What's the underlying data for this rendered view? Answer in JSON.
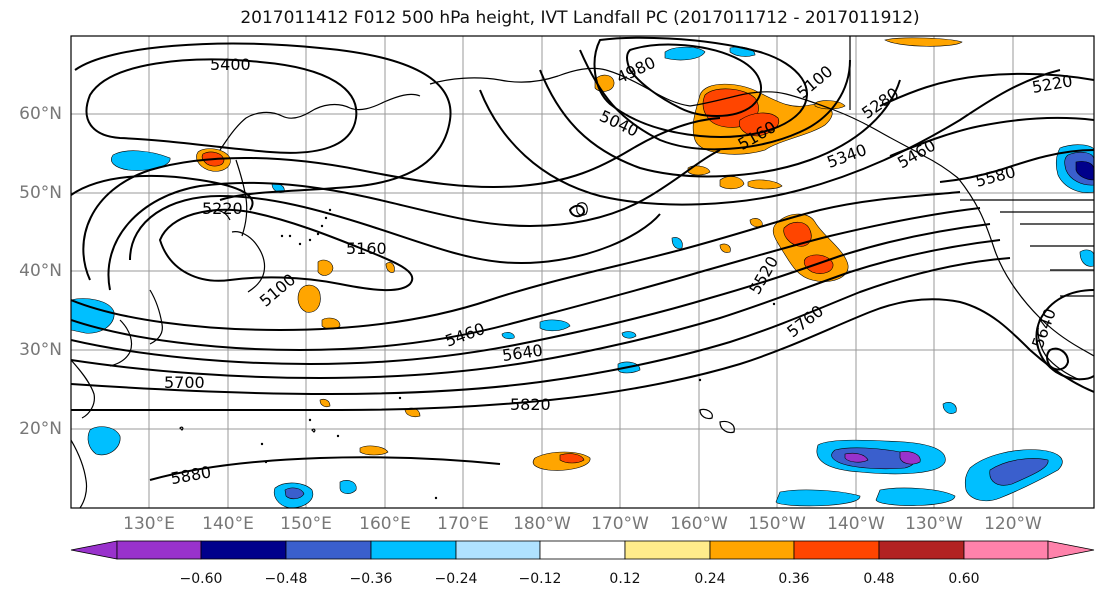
{
  "title": "2017011412 F012 500 hPa height, IVT Landfall PC (2017011712 - 2017011912)",
  "lat_labels": [
    "60°N",
    "50°N",
    "40°N",
    "30°N",
    "20°N"
  ],
  "lon_labels": [
    "130°E",
    "140°E",
    "150°E",
    "160°E",
    "170°E",
    "180°W",
    "170°W",
    "160°W",
    "150°W",
    "140°W",
    "130°W",
    "120°W"
  ],
  "contour_labels": [
    "5400",
    "4980",
    "5100",
    "5220",
    "5040",
    "5160",
    "5280",
    "5340",
    "5460",
    "5580",
    "5220",
    "5160",
    "5100",
    "5460",
    "5520",
    "5640",
    "5700",
    "5760",
    "5640",
    "5820",
    "5880"
  ],
  "colorbar": {
    "ticks": [
      "−0.60",
      "−0.48",
      "−0.36",
      "−0.24",
      "−0.12",
      "0.12",
      "0.24",
      "0.36",
      "0.48",
      "0.60"
    ],
    "colors": [
      "#9932cc",
      "#00008b",
      "#3a5fcd",
      "#00bfff",
      "#b0e2ff",
      "#ffffff",
      "#ffec8b",
      "#ffa500",
      "#ff4500",
      "#b22222",
      "#ff82ab"
    ]
  }
}
